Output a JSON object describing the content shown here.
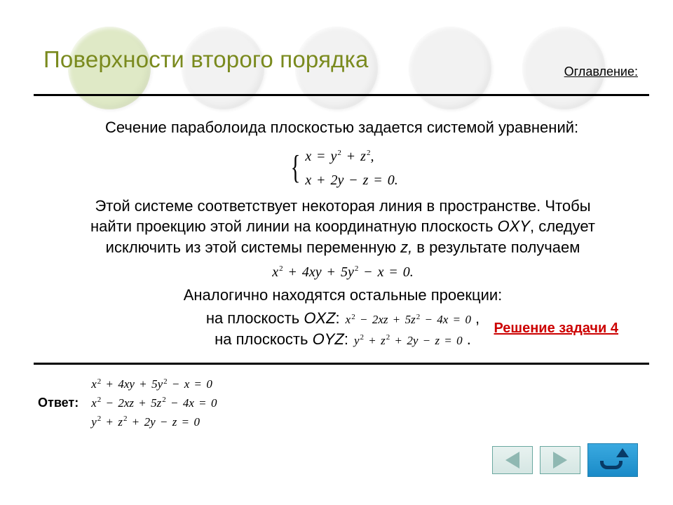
{
  "colors": {
    "title": "#7a8a1e",
    "rule": "#000000",
    "solve_link": "#cc0000",
    "circle_colors": [
      "#dfe9c6",
      "#f2f2f2",
      "#f2f2f2",
      "#f2f2f2",
      "#f2f2f2"
    ],
    "nav_btn_border": "#6aa8a0",
    "nav_btn_fill": "#8fb8b2",
    "home_bg": "#1a8bc8",
    "home_arrow": "#083a66"
  },
  "title": "Поверхности второго порядка",
  "toc": "Оглавление:",
  "para1": "Сечение параболоида плоскостью задается системой уравнений:",
  "system": {
    "eq1_html": "<span class='math'>x <span class='op'>=</span> y<sup>2</sup> <span class='op'>+</span> z<sup>2</sup>,</span>",
    "eq2_html": "<span class='math'>x <span class='op'>+</span> 2y <span class='op'>−</span> z <span class='op'>=</span> 0.</span>"
  },
  "para2": "Этой системе соответствует некоторая линия в пространстве. Чтобы найти проекцию этой линии на координатную плоскость <span class='ital'>OXY</span>, следует исключить из этой системы переменную <span class='ital'>z,</span> в результате получаем",
  "eq_main_html": "<span class='math'>x<sup>2</sup> <span class='op'>+</span> 4xy <span class='op'>+</span> 5y<sup>2</sup> <span class='op'>−</span> x <span class='op'>=</span> 0.</span>",
  "para3": "Аналогично находятся остальные проекции:",
  "proj_oxz_label": "на плоскость <span class='ital'>OXZ</span>:",
  "proj_oxz_eq": "<span class='math'>x<sup>2</sup> <span class='op'>−</span> 2xz <span class='op'>+</span> 5z<sup>2</sup> <span class='op'>−</span> 4x <span class='op'>=</span> 0</span> ,",
  "proj_oyz_label": "на плоскость <span class='ital'>OYZ</span>:",
  "proj_oyz_eq": "<span class='math'>y<sup>2</sup> <span class='op'>+</span> z<sup>2</sup> <span class='op'>+</span> 2y <span class='op'>−</span> z <span class='op'>=</span> 0</span> .",
  "solve_link": "Решение задачи 4",
  "answer_label": "Ответ:",
  "answers": [
    "<span class='math'>x<sup>2</sup> <span class='op'>+</span> 4xy <span class='op'>+</span> 5y<sup>2</sup> <span class='op'>−</span> x <span class='op'>=</span> 0</span>",
    "<span class='math'>x<sup>2</sup> <span class='op'>−</span> 2xz <span class='op'>+</span> 5z<sup>2</sup> <span class='op'>−</span> 4x <span class='op'>=</span> 0</span>",
    "<span class='math'>y<sup>2</sup> <span class='op'>+</span> z<sup>2</sup> <span class='op'>+</span> 2y <span class='op'>−</span> z <span class='op'>=</span> 0</span>"
  ]
}
